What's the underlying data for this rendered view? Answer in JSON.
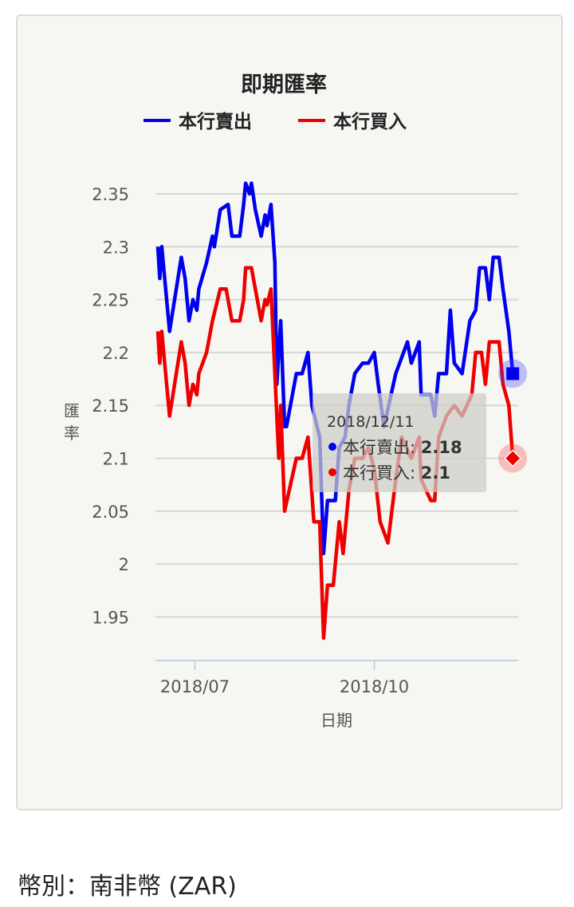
{
  "footer": {
    "label": "幣別：南非幣 (ZAR)"
  },
  "chart_data": {
    "type": "line",
    "title": "即期匯率",
    "xlabel": "日期",
    "ylabel": "匯率",
    "x_start_date": "2018/06/12",
    "x_unit": "days since start",
    "xticks": [
      {
        "day": 19,
        "label": "2018/07"
      },
      {
        "day": 111,
        "label": "2018/10"
      }
    ],
    "yticks": [
      1.95,
      2,
      2.05,
      2.1,
      2.15,
      2.2,
      2.25,
      2.3,
      2.35
    ],
    "ytick_labels": [
      "1.95",
      "2",
      "2.05",
      "2.1",
      "2.15",
      "2.2",
      "2.25",
      "2.3",
      "2.35"
    ],
    "ylim": [
      1.93,
      2.37
    ],
    "xlim": [
      0,
      187
    ],
    "grid": true,
    "legend_position": "top",
    "series": [
      {
        "name": "本行賣出",
        "color": "#0000ee",
        "x": [
          0,
          1,
          2,
          6,
          12,
          14,
          16,
          18,
          20,
          21,
          25,
          28,
          29,
          32,
          36,
          38,
          42,
          44,
          45,
          47,
          48,
          50,
          53,
          55,
          56,
          58,
          60,
          61,
          63,
          65,
          66,
          71,
          74,
          77,
          79,
          83,
          85,
          87,
          91,
          93,
          96,
          98,
          101,
          105,
          108,
          111,
          113,
          116,
          122,
          128,
          130,
          134,
          135,
          140,
          142,
          144,
          148,
          150,
          152,
          156,
          160,
          163,
          165,
          168,
          170,
          172,
          175,
          177,
          180,
          182
        ],
        "values": [
          2.3,
          2.27,
          2.3,
          2.22,
          2.29,
          2.27,
          2.23,
          2.25,
          2.24,
          2.26,
          2.285,
          2.31,
          2.3,
          2.335,
          2.34,
          2.31,
          2.31,
          2.34,
          2.36,
          2.35,
          2.36,
          2.335,
          2.31,
          2.33,
          2.32,
          2.34,
          2.285,
          2.17,
          2.23,
          2.13,
          2.13,
          2.18,
          2.18,
          2.2,
          2.15,
          2.12,
          2.01,
          2.06,
          2.06,
          2.11,
          2.12,
          2.15,
          2.18,
          2.19,
          2.19,
          2.2,
          2.17,
          2.13,
          2.18,
          2.21,
          2.19,
          2.21,
          2.16,
          2.16,
          2.14,
          2.18,
          2.18,
          2.24,
          2.19,
          2.18,
          2.23,
          2.24,
          2.28,
          2.28,
          2.25,
          2.29,
          2.29,
          2.26,
          2.22,
          2.18
        ]
      },
      {
        "name": "本行買入",
        "color": "#ee0000",
        "x": [
          0,
          1,
          2,
          6,
          12,
          14,
          16,
          18,
          20,
          21,
          25,
          28,
          32,
          35,
          38,
          42,
          44,
          45,
          48,
          50,
          53,
          55,
          56,
          58,
          60,
          62,
          63,
          65,
          71,
          74,
          77,
          80,
          83,
          85,
          87,
          90,
          93,
          95,
          98,
          101,
          105,
          108,
          111,
          114,
          118,
          122,
          125,
          130,
          134,
          135,
          140,
          142,
          144,
          148,
          152,
          156,
          161,
          163,
          166,
          168,
          170,
          175,
          177,
          180,
          182
        ],
        "values": [
          2.22,
          2.19,
          2.22,
          2.14,
          2.21,
          2.19,
          2.15,
          2.17,
          2.16,
          2.18,
          2.2,
          2.23,
          2.26,
          2.26,
          2.23,
          2.23,
          2.25,
          2.28,
          2.28,
          2.26,
          2.23,
          2.25,
          2.245,
          2.26,
          2.18,
          2.1,
          2.15,
          2.05,
          2.1,
          2.1,
          2.12,
          2.04,
          2.04,
          1.93,
          1.98,
          1.98,
          2.04,
          2.01,
          2.07,
          2.1,
          2.1,
          2.11,
          2.09,
          2.04,
          2.02,
          2.08,
          2.12,
          2.1,
          2.12,
          2.08,
          2.06,
          2.06,
          2.12,
          2.14,
          2.15,
          2.14,
          2.16,
          2.2,
          2.2,
          2.17,
          2.21,
          2.21,
          2.17,
          2.15,
          2.1
        ]
      }
    ],
    "tooltip": {
      "date": "2018/12/11",
      "rows": [
        {
          "label": "本行賣出: ",
          "value": "2.18"
        },
        {
          "label": "本行買入: ",
          "value": "2.1"
        }
      ]
    }
  }
}
